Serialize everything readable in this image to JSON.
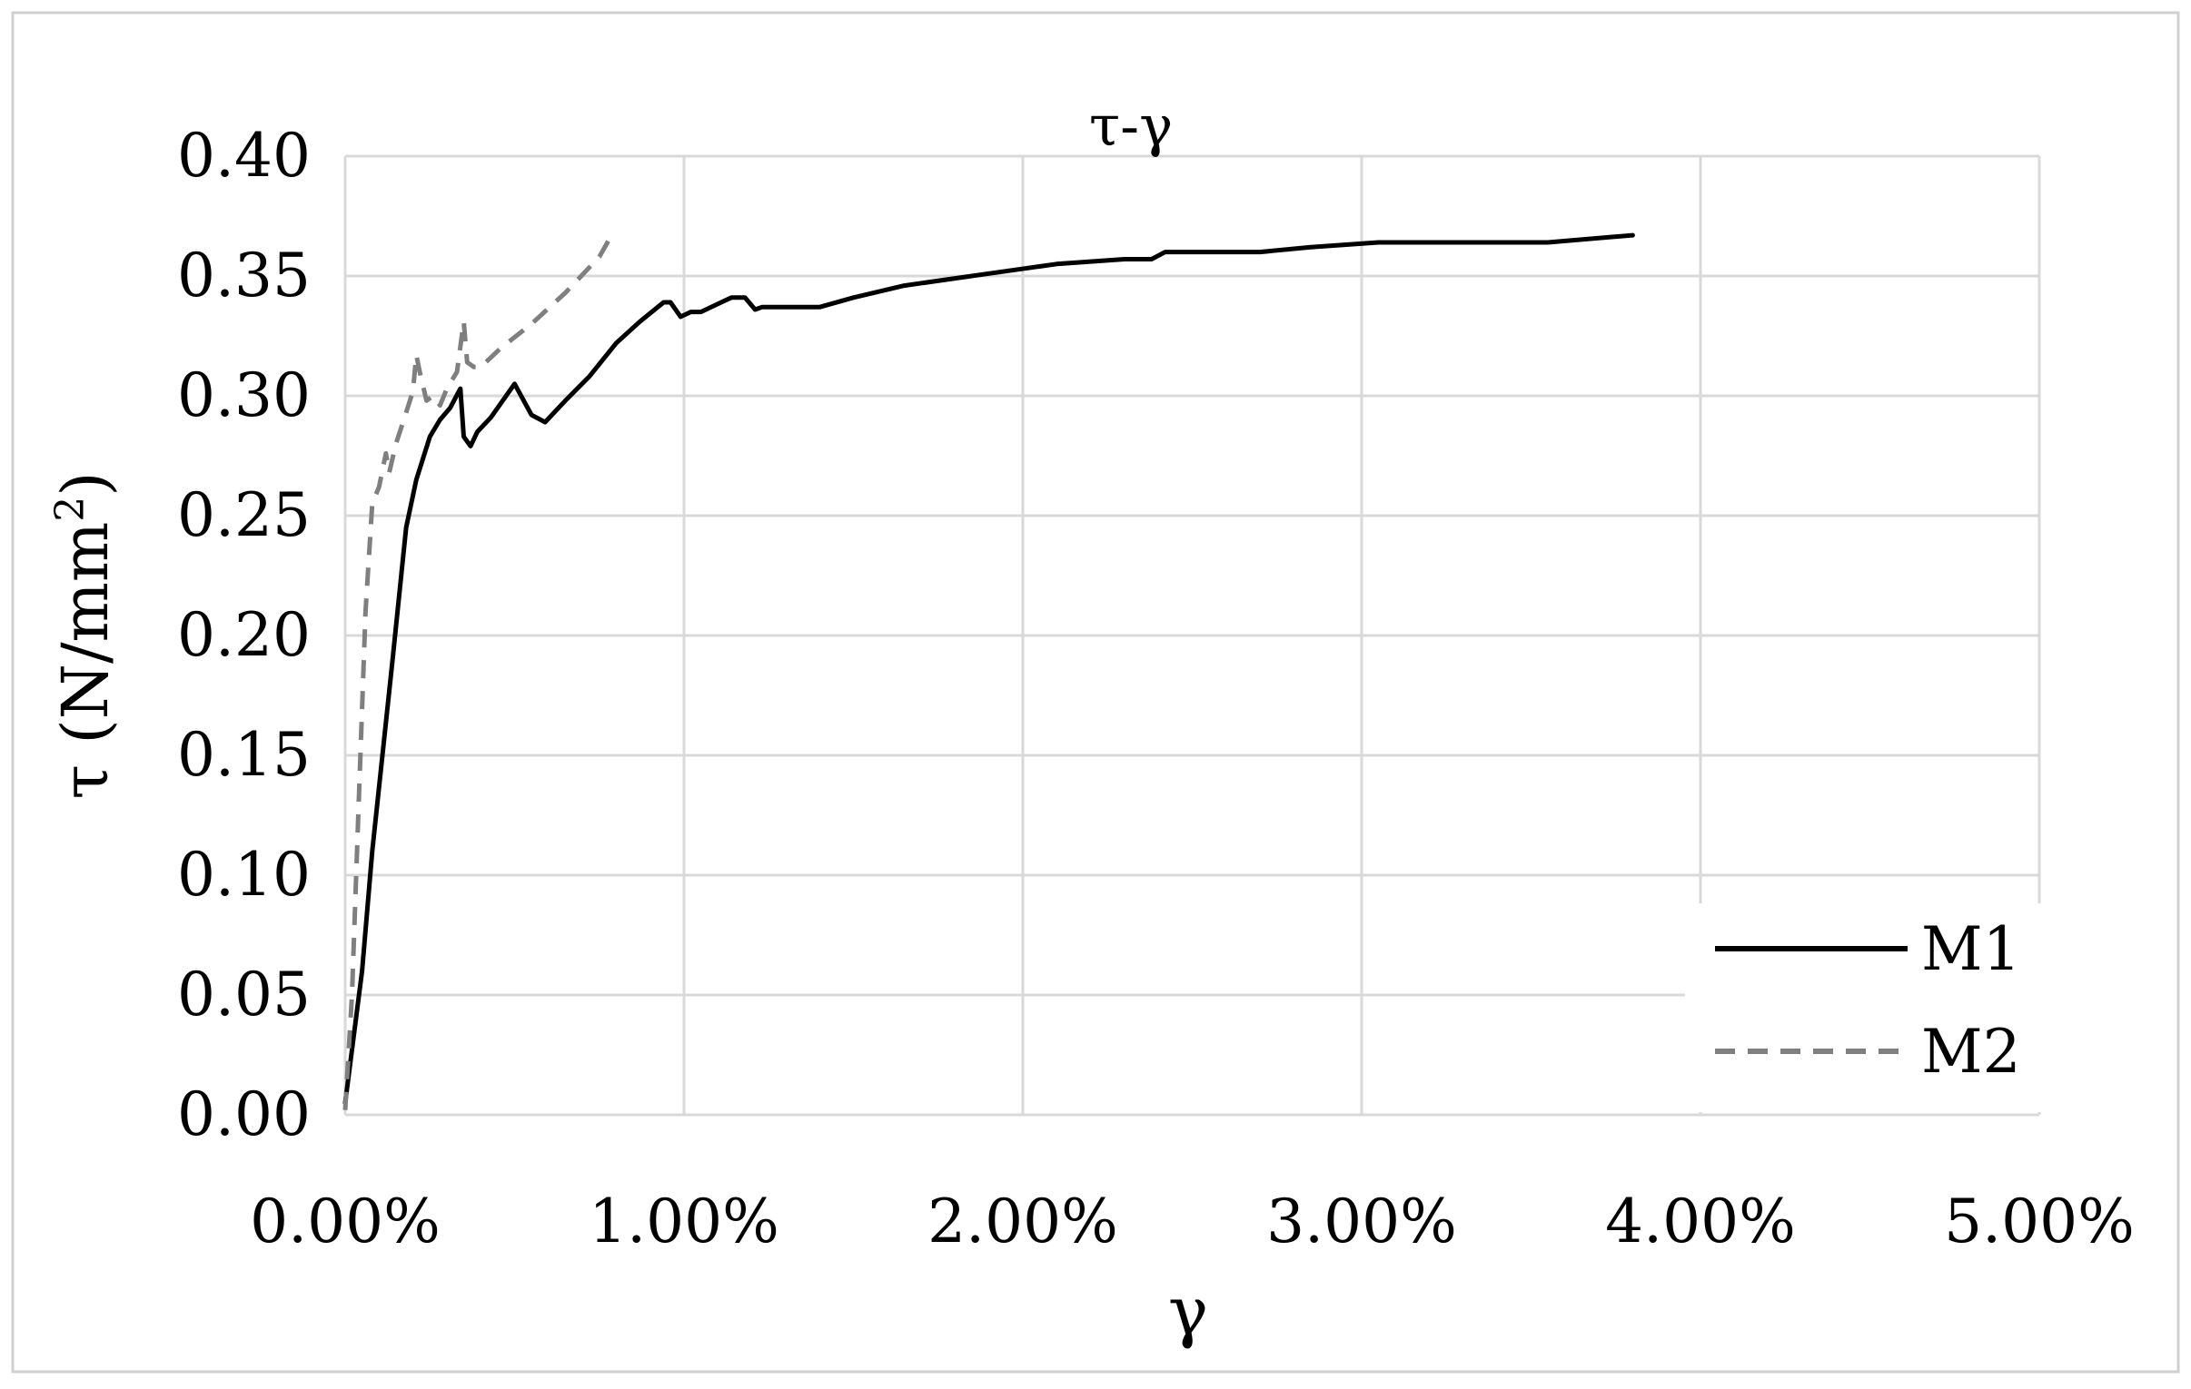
{
  "chart_data": {
    "type": "line",
    "title": "τ-γ",
    "xlabel": "γ",
    "ylabel": "τ (N/mm",
    "ylabel_superscript": "2",
    "ylabel_suffix": ")",
    "xlim": [
      0,
      0.05
    ],
    "ylim": [
      0,
      0.4
    ],
    "x_ticks": [
      0,
      0.01,
      0.02,
      0.03,
      0.04,
      0.05
    ],
    "x_tick_labels": [
      "0.00%",
      "1.00%",
      "2.00%",
      "3.00%",
      "4.00%",
      "5.00%"
    ],
    "y_ticks": [
      0,
      0.05,
      0.1,
      0.15,
      0.2,
      0.25,
      0.3,
      0.35,
      0.4
    ],
    "y_tick_labels": [
      "0.00",
      "0.05",
      "0.10",
      "0.15",
      "0.20",
      "0.25",
      "0.30",
      "0.35",
      "0.40"
    ],
    "grid": true,
    "legend_position": "bottom-right",
    "series": [
      {
        "name": "M1",
        "color": "#000000",
        "dash": "solid",
        "points": [
          [
            0.0,
            0.005
          ],
          [
            0.0005,
            0.06
          ],
          [
            0.0008,
            0.11
          ],
          [
            0.0011,
            0.15
          ],
          [
            0.0014,
            0.19
          ],
          [
            0.0018,
            0.245
          ],
          [
            0.0021,
            0.265
          ],
          [
            0.0025,
            0.283
          ],
          [
            0.0028,
            0.29
          ],
          [
            0.0031,
            0.295
          ],
          [
            0.0034,
            0.303
          ],
          [
            0.0035,
            0.283
          ],
          [
            0.0037,
            0.279
          ],
          [
            0.0039,
            0.285
          ],
          [
            0.0043,
            0.291
          ],
          [
            0.005,
            0.305
          ],
          [
            0.0055,
            0.292
          ],
          [
            0.0059,
            0.289
          ],
          [
            0.0065,
            0.298
          ],
          [
            0.0072,
            0.308
          ],
          [
            0.008,
            0.322
          ],
          [
            0.0087,
            0.331
          ],
          [
            0.0094,
            0.339
          ],
          [
            0.0096,
            0.339
          ],
          [
            0.0099,
            0.333
          ],
          [
            0.0102,
            0.335
          ],
          [
            0.0105,
            0.335
          ],
          [
            0.0111,
            0.339
          ],
          [
            0.0114,
            0.341
          ],
          [
            0.0118,
            0.341
          ],
          [
            0.0121,
            0.336
          ],
          [
            0.0123,
            0.337
          ],
          [
            0.014,
            0.337
          ],
          [
            0.015,
            0.341
          ],
          [
            0.0165,
            0.346
          ],
          [
            0.018,
            0.349
          ],
          [
            0.0195,
            0.352
          ],
          [
            0.021,
            0.355
          ],
          [
            0.023,
            0.357
          ],
          [
            0.0238,
            0.357
          ],
          [
            0.0242,
            0.36
          ],
          [
            0.027,
            0.36
          ],
          [
            0.0285,
            0.362
          ],
          [
            0.0305,
            0.364
          ],
          [
            0.0325,
            0.364
          ],
          [
            0.0355,
            0.364
          ],
          [
            0.038,
            0.367
          ]
        ]
      },
      {
        "name": "M2",
        "color": "#7f7f7f",
        "dash": "dashed",
        "points": [
          [
            0.0,
            0.002
          ],
          [
            0.0002,
            0.05
          ],
          [
            0.0004,
            0.13
          ],
          [
            0.0006,
            0.21
          ],
          [
            0.0008,
            0.255
          ],
          [
            0.001,
            0.262
          ],
          [
            0.0012,
            0.276
          ],
          [
            0.0013,
            0.268
          ],
          [
            0.0015,
            0.28
          ],
          [
            0.0018,
            0.293
          ],
          [
            0.002,
            0.302
          ],
          [
            0.0021,
            0.317
          ],
          [
            0.0022,
            0.31
          ],
          [
            0.0024,
            0.298
          ],
          [
            0.0026,
            0.3
          ],
          [
            0.0028,
            0.296
          ],
          [
            0.003,
            0.303
          ],
          [
            0.0033,
            0.31
          ],
          [
            0.0035,
            0.331
          ],
          [
            0.0036,
            0.314
          ],
          [
            0.0038,
            0.312
          ],
          [
            0.004,
            0.312
          ],
          [
            0.0046,
            0.32
          ],
          [
            0.0055,
            0.33
          ],
          [
            0.0065,
            0.343
          ],
          [
            0.0075,
            0.358
          ],
          [
            0.0079,
            0.368
          ]
        ]
      }
    ]
  }
}
